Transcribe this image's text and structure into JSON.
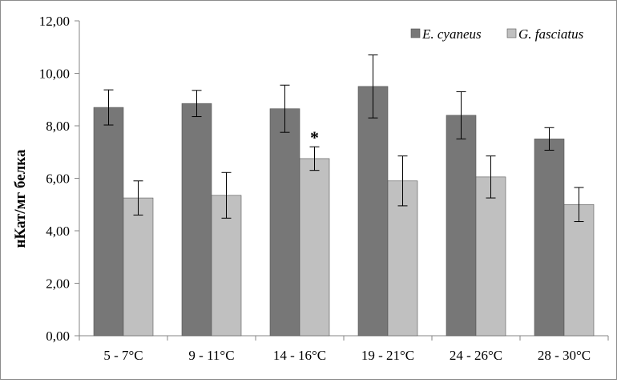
{
  "chart_data": {
    "type": "bar",
    "title": "",
    "xlabel": "",
    "ylabel": "нКат/мг белка",
    "ylim": [
      0,
      12
    ],
    "yticks": [
      "0,00",
      "2,00",
      "4,00",
      "6,00",
      "8,00",
      "10,00",
      "12,00"
    ],
    "categories": [
      "5 - 7°C",
      "9 - 11°C",
      "14 - 16°C",
      "19 - 21°C",
      "24 - 26°C",
      "28 - 30°C"
    ],
    "series": [
      {
        "name": "E. cyaneus",
        "color": "#777777",
        "values": [
          8.7,
          8.85,
          8.65,
          9.5,
          8.4,
          7.5
        ],
        "errors": [
          0.67,
          0.5,
          0.9,
          1.2,
          0.9,
          0.43
        ]
      },
      {
        "name": "G. fasciatus",
        "color": "#c0c0c0",
        "values": [
          5.25,
          5.35,
          6.75,
          5.9,
          6.05,
          5.0
        ],
        "errors": [
          0.65,
          0.87,
          0.45,
          0.95,
          0.8,
          0.65
        ]
      }
    ],
    "annotations": [
      {
        "text": "*",
        "series": 1,
        "category": 2
      }
    ],
    "legend_position": "top-right",
    "grid": false
  }
}
